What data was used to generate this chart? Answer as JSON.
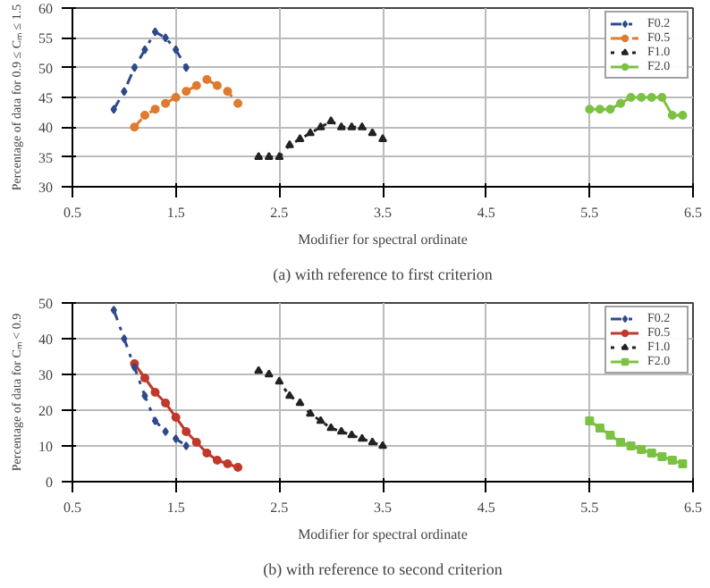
{
  "chart_data": [
    {
      "type": "line",
      "title": "(a) with reference to first criterion",
      "xlabel": "Modifier for spectral ordinate",
      "ylabel": "Percentage of data for 0.9 ≤ Cₘ ≤ 1.5",
      "xlim": [
        0.5,
        6.5
      ],
      "xticks": [
        0.5,
        1.5,
        2.5,
        3.5,
        4.5,
        5.5,
        6.5
      ],
      "ylim": [
        30,
        60
      ],
      "yticks": [
        30,
        35,
        40,
        45,
        50,
        55,
        60
      ],
      "grid": true,
      "legend": "top right",
      "series": [
        {
          "name": "F0.2",
          "color": "#2e4a8b",
          "marker": "diamond",
          "line_style": "dashdot",
          "x": [
            0.9,
            1.0,
            1.1,
            1.2,
            1.3,
            1.4,
            1.5,
            1.6
          ],
          "values": [
            43,
            46,
            50,
            53,
            56,
            55,
            53,
            50
          ]
        },
        {
          "name": "F0.5",
          "color": "#e07a2e",
          "marker": "circle",
          "line_style": "dashed",
          "x": [
            1.1,
            1.2,
            1.3,
            1.4,
            1.5,
            1.6,
            1.7,
            1.8,
            1.9,
            2.0,
            2.1
          ],
          "values": [
            40,
            42,
            43,
            44,
            45,
            46,
            47,
            48,
            47,
            46,
            44
          ]
        },
        {
          "name": "F1.0",
          "color": "#222222",
          "marker": "triangle",
          "line_style": "dotted",
          "x": [
            2.3,
            2.4,
            2.5,
            2.6,
            2.7,
            2.8,
            2.9,
            3.0,
            3.1,
            3.2,
            3.3,
            3.4,
            3.5
          ],
          "values": [
            35,
            35,
            35,
            37,
            38,
            39,
            40,
            41,
            40,
            40,
            40,
            39,
            38
          ]
        },
        {
          "name": "F2.0",
          "color": "#7cc242",
          "marker": "circle",
          "line_style": "solid",
          "x": [
            5.5,
            5.6,
            5.7,
            5.8,
            5.9,
            6.0,
            6.1,
            6.2,
            6.3,
            6.4
          ],
          "values": [
            43,
            43,
            43,
            44,
            45,
            45,
            45,
            45,
            42,
            42
          ]
        }
      ]
    },
    {
      "type": "line",
      "title": "(b) with reference to second criterion",
      "xlabel": "Modifier for spectral ordinate",
      "ylabel": "Percentage of data for Cₘ < 0.9",
      "xlim": [
        0.5,
        6.5
      ],
      "xticks": [
        0.5,
        1.5,
        2.5,
        3.5,
        4.5,
        5.5,
        6.5
      ],
      "ylim": [
        0,
        50
      ],
      "yticks": [
        0,
        10,
        20,
        30,
        40,
        50
      ],
      "grid": true,
      "legend": "top right",
      "series": [
        {
          "name": "F0.2",
          "color": "#2e4a8b",
          "marker": "diamond",
          "line_style": "dashdot",
          "x": [
            0.9,
            1.0,
            1.1,
            1.2,
            1.3,
            1.4,
            1.5,
            1.6
          ],
          "values": [
            48,
            40,
            32,
            24,
            17,
            14,
            12,
            10
          ]
        },
        {
          "name": "F0.5",
          "color": "#c0392b",
          "marker": "circle",
          "line_style": "solid",
          "x": [
            1.1,
            1.2,
            1.3,
            1.4,
            1.5,
            1.6,
            1.7,
            1.8,
            1.9,
            2.0,
            2.1
          ],
          "values": [
            33,
            29,
            25,
            22,
            18,
            14,
            11,
            8,
            6,
            5,
            4
          ]
        },
        {
          "name": "F1.0",
          "color": "#222222",
          "marker": "triangle",
          "line_style": "dotted",
          "x": [
            2.3,
            2.4,
            2.5,
            2.6,
            2.7,
            2.8,
            2.9,
            3.0,
            3.1,
            3.2,
            3.3,
            3.4,
            3.5
          ],
          "values": [
            31,
            30,
            28,
            24,
            22,
            19,
            17,
            15,
            14,
            13,
            12,
            11,
            10
          ]
        },
        {
          "name": "F2.0",
          "color": "#7cc242",
          "marker": "square",
          "line_style": "solid",
          "x": [
            5.5,
            5.6,
            5.7,
            5.8,
            5.9,
            6.0,
            6.1,
            6.2,
            6.3,
            6.4
          ],
          "values": [
            17,
            15,
            13,
            11,
            10,
            9,
            8,
            7,
            6,
            5
          ]
        }
      ]
    }
  ]
}
